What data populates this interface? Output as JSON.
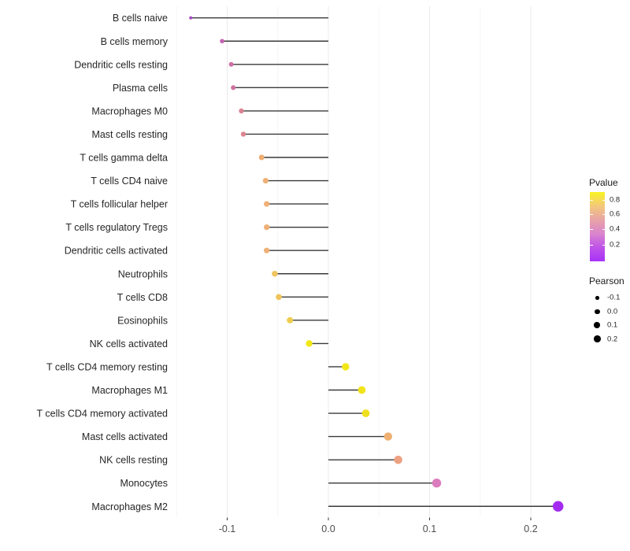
{
  "chart_data": {
    "type": "lollipop",
    "title": "",
    "xlabel": "",
    "ylabel": "",
    "orientation": "horizontal",
    "grid": "vertical-only",
    "x_axis": {
      "tick_labels": [
        "-0.1",
        "0.0",
        "0.1",
        "0.2"
      ],
      "tick_values": [
        -0.1,
        0.0,
        0.1,
        0.2
      ],
      "minor_tick_values": [
        -0.15,
        -0.05,
        0.05,
        0.15
      ],
      "range": [
        -0.153,
        0.245
      ]
    },
    "points": [
      {
        "label": "B cells naive",
        "pearson": -0.136,
        "color": "#A84EC5"
      },
      {
        "label": "B cells memory",
        "pearson": -0.105,
        "color": "#C666B3"
      },
      {
        "label": "Dendritic cells resting",
        "pearson": -0.096,
        "color": "#CE6FA5"
      },
      {
        "label": "Plasma cells",
        "pearson": -0.094,
        "color": "#D0719F"
      },
      {
        "label": "Macrophages M0",
        "pearson": -0.086,
        "color": "#DB8294"
      },
      {
        "label": "Mast cells resting",
        "pearson": -0.084,
        "color": "#DC8590"
      },
      {
        "label": "T cells gamma delta",
        "pearson": -0.066,
        "color": "#EFAD72"
      },
      {
        "label": "T cells CD4 naive",
        "pearson": -0.062,
        "color": "#F0B075"
      },
      {
        "label": "T cells follicular helper",
        "pearson": -0.061,
        "color": "#F0B075"
      },
      {
        "label": "T cells regulatory  Tregs",
        "pearson": -0.061,
        "color": "#F0B075"
      },
      {
        "label": "Dendritic cells activated",
        "pearson": -0.061,
        "color": "#F0B075"
      },
      {
        "label": "Neutrophils",
        "pearson": -0.053,
        "color": "#EFC45E"
      },
      {
        "label": "T cells CD8",
        "pearson": -0.049,
        "color": "#EFC45A"
      },
      {
        "label": "Eosinophils",
        "pearson": -0.038,
        "color": "#F0CC4E"
      },
      {
        "label": "NK cells activated",
        "pearson": -0.019,
        "color": "#F2E716"
      },
      {
        "label": "T cells CD4 memory resting",
        "pearson": 0.017,
        "color": "#F2E716"
      },
      {
        "label": "Macrophages M1",
        "pearson": 0.033,
        "color": "#F1E41A"
      },
      {
        "label": "T cells CD4 memory activated",
        "pearson": 0.037,
        "color": "#F0DF20"
      },
      {
        "label": "Mast cells activated",
        "pearson": 0.059,
        "color": "#EFB072"
      },
      {
        "label": "NK cells resting",
        "pearson": 0.069,
        "color": "#ECA283"
      },
      {
        "label": "Monocytes",
        "pearson": 0.107,
        "color": "#DB7CBE"
      },
      {
        "label": "Macrophages M2",
        "pearson": 0.227,
        "color": "#A32BF0"
      }
    ],
    "legend_pvalue": {
      "title": "Pvalue",
      "tick_labels": [
        "0.8",
        "0.6",
        "0.4",
        "0.2"
      ],
      "gradient_top_to_bottom": [
        "#F8F321",
        "#F3C97B",
        "#E8A3A6",
        "#DB85CD",
        "#BE53E8",
        "#A832F7"
      ]
    },
    "legend_pearson": {
      "title": "Pearson",
      "dot_color": "#000000",
      "items": [
        {
          "label": "-0.1",
          "size": 4.7
        },
        {
          "label": "0.0",
          "size": 6.7
        },
        {
          "label": "0.1",
          "size": 7.7
        },
        {
          "label": "0.2",
          "size": 8.7
        }
      ]
    }
  },
  "colors": {
    "background": "#FFFFFF",
    "grid_major": "#EBEBEB",
    "grid_minor": "#F5F5F5",
    "stem": "#3A3A3A",
    "axis_tick": "#333333",
    "axis_text": "#4D4D4D",
    "category_text": "#262626"
  }
}
